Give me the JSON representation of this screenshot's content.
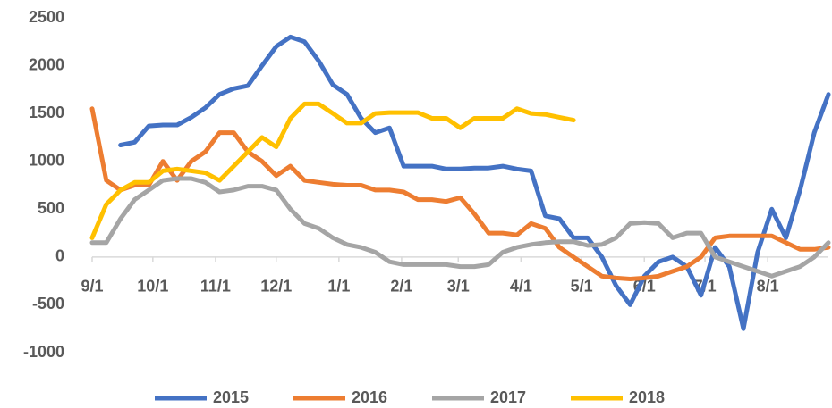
{
  "chart_data": {
    "type": "line",
    "x": [
      0,
      7,
      14,
      21,
      28,
      35,
      42,
      49,
      56,
      63,
      70,
      77,
      84,
      91,
      98,
      105,
      112,
      119,
      126,
      133,
      140,
      147,
      154,
      161,
      168,
      175,
      182,
      189,
      196,
      203,
      210,
      217,
      224,
      231,
      238,
      245,
      252,
      259,
      266,
      273,
      280,
      287,
      294,
      301,
      308,
      315,
      322,
      329,
      336,
      343,
      350,
      357,
      364
    ],
    "xlim": [
      0,
      364
    ],
    "xticks": [
      {
        "value": 0,
        "label": "9/1"
      },
      {
        "value": 30,
        "label": "10/1"
      },
      {
        "value": 61,
        "label": "11/1"
      },
      {
        "value": 91,
        "label": "12/1"
      },
      {
        "value": 122,
        "label": "1/1"
      },
      {
        "value": 153,
        "label": "2/1"
      },
      {
        "value": 181,
        "label": "3/1"
      },
      {
        "value": 212,
        "label": "4/1"
      },
      {
        "value": 242,
        "label": "5/1"
      },
      {
        "value": 273,
        "label": "6/1"
      },
      {
        "value": 303,
        "label": "7/1"
      },
      {
        "value": 334,
        "label": "8/1"
      }
    ],
    "ylim": [
      -1000,
      2500
    ],
    "yticks": [
      -1000,
      -500,
      0,
      500,
      1000,
      1500,
      2000,
      2500
    ],
    "legend": "bottom",
    "series": [
      {
        "name": "2015",
        "color": "#4472c4",
        "values": [
          null,
          null,
          1170,
          1200,
          1370,
          1380,
          1380,
          1460,
          1560,
          1700,
          1760,
          1790,
          2000,
          2200,
          2300,
          2250,
          2050,
          1800,
          1700,
          1450,
          1300,
          1350,
          950,
          950,
          950,
          920,
          920,
          930,
          930,
          950,
          920,
          900,
          430,
          400,
          200,
          200,
          0,
          -300,
          -500,
          -200,
          -50,
          0,
          -100,
          -400,
          100,
          -100,
          -750,
          50,
          500,
          200,
          700,
          1300,
          1700
        ]
      },
      {
        "name": "2016",
        "color": "#ed7d31",
        "values": [
          1550,
          800,
          700,
          750,
          750,
          1000,
          800,
          1000,
          1100,
          1300,
          1300,
          1100,
          1000,
          850,
          950,
          800,
          780,
          760,
          750,
          750,
          700,
          700,
          680,
          600,
          600,
          580,
          620,
          450,
          250,
          250,
          230,
          350,
          300,
          100,
          0,
          -100,
          -200,
          -220,
          -230,
          -220,
          -200,
          -150,
          -100,
          0,
          200,
          220,
          220,
          220,
          220,
          150,
          80,
          80,
          100
        ]
      },
      {
        "name": "2017",
        "color": "#a5a5a5",
        "values": [
          150,
          150,
          400,
          600,
          700,
          800,
          820,
          820,
          780,
          680,
          700,
          740,
          740,
          700,
          500,
          350,
          300,
          200,
          130,
          100,
          50,
          -50,
          -80,
          -80,
          -80,
          -80,
          -100,
          -100,
          -80,
          50,
          100,
          130,
          150,
          160,
          160,
          120,
          130,
          200,
          350,
          360,
          350,
          200,
          250,
          250,
          0,
          -50,
          -100,
          -150,
          -200,
          -150,
          -100,
          0,
          150
        ]
      },
      {
        "name": "2018",
        "color": "#ffc000",
        "values": [
          200,
          550,
          700,
          780,
          780,
          900,
          920,
          900,
          880,
          800,
          950,
          1100,
          1250,
          1150,
          1450,
          1600,
          1600,
          1500,
          1400,
          1400,
          1500,
          1510,
          1510,
          1510,
          1450,
          1450,
          1350,
          1450,
          1450,
          1450,
          1550,
          1500,
          1490,
          1460,
          1430,
          null,
          null,
          null,
          null,
          null,
          null,
          null,
          null,
          null,
          null,
          null,
          null,
          null,
          null,
          null,
          null,
          null,
          null
        ]
      }
    ]
  }
}
